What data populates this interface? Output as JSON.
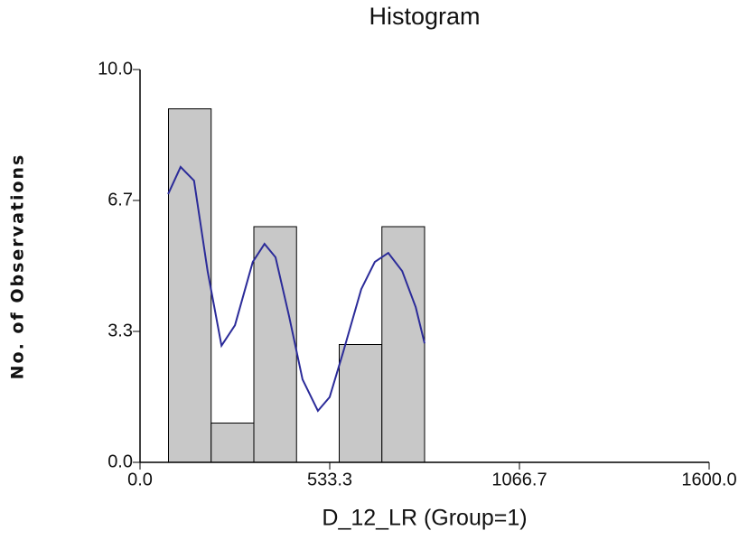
{
  "chart_data": {
    "type": "histogram",
    "title": "Histogram",
    "x_label": "D_12_LR (Group=1)",
    "y_label": "No. of Observations",
    "bins": [
      80,
      200,
      320,
      440,
      560,
      680,
      800
    ],
    "values": [
      9,
      1,
      6,
      0,
      3,
      6
    ],
    "color": "#c8c8c8",
    "density": {
      "color": "#2b2b99",
      "x": [
        79,
        114,
        152,
        190,
        229,
        267,
        317,
        350,
        381,
        419,
        457,
        500,
        533,
        571,
        622,
        660,
        698,
        737,
        775,
        800
      ],
      "values": [
        6.83,
        7.52,
        7.17,
        4.87,
        2.97,
        3.49,
        5.1,
        5.56,
        5.22,
        3.72,
        2.11,
        1.31,
        1.66,
        2.8,
        4.41,
        5.1,
        5.33,
        4.87,
        3.95,
        3.03
      ]
    },
    "xlim": [
      0,
      1600
    ],
    "xticks": [
      {
        "value": 0,
        "label": "0.0"
      },
      {
        "value": 533.3,
        "label": "533.3"
      },
      {
        "value": 1066.7,
        "label": "1066.7"
      },
      {
        "value": 1600,
        "label": "1600.0"
      }
    ],
    "ylim": [
      0,
      10
    ],
    "yticks": [
      {
        "value": 0,
        "label": "0.0"
      },
      {
        "value": 3.333,
        "label": "3.3"
      },
      {
        "value": 6.667,
        "label": "6.7"
      },
      {
        "value": 10,
        "label": "10.0"
      }
    ]
  }
}
